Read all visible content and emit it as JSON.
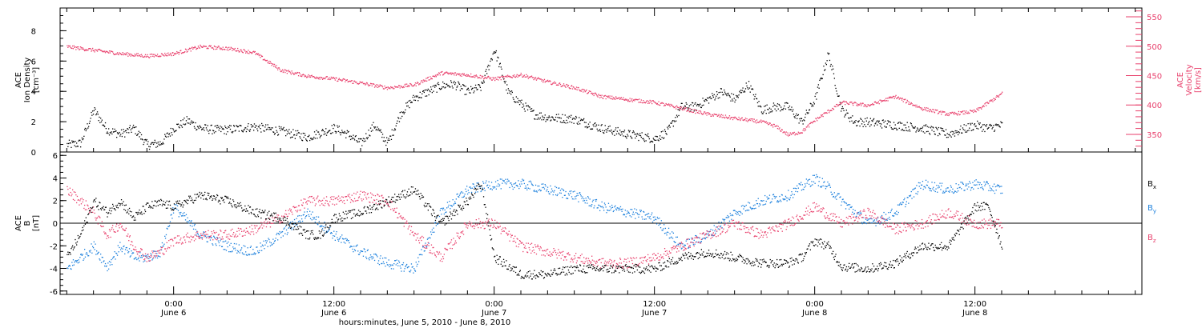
{
  "colors": {
    "black": "#000000",
    "pink": "#e8406c",
    "blue": "#1a7fdc"
  },
  "xaxis": {
    "ticks": [
      {
        "h": 24,
        "line1": "0:00",
        "line2": "June 6"
      },
      {
        "h": 36,
        "line1": "12:00",
        "line2": "June 6"
      },
      {
        "h": 48,
        "line1": "0:00",
        "line2": "June 7"
      },
      {
        "h": 60,
        "line1": "12:00",
        "line2": "June 7"
      },
      {
        "h": 72,
        "line1": "0:00",
        "line2": "June 8"
      },
      {
        "h": 84,
        "line1": "12:00",
        "line2": "June 8"
      }
    ],
    "title": "hours:minutes, June  5, 2010 - June  8, 2010",
    "range_hours": [
      15.5,
      96.5
    ]
  },
  "chart_data": [
    {
      "type": "scatter",
      "panel": "top",
      "ylabel_left": [
        "ACE",
        "Ion Density",
        "[cm⁻³]"
      ],
      "ylabel_right": [
        "ACE",
        "Velocity",
        "[km/s]"
      ],
      "yticks_left": [
        "0",
        "2",
        "4",
        "6",
        "8"
      ],
      "yticks_right": [
        "350",
        "400",
        "450",
        "500",
        "550"
      ],
      "ylim_left": [
        0,
        9.5
      ],
      "ylim_right": [
        320,
        565
      ],
      "series": [
        {
          "axis": "left",
          "color": "#000000",
          "x": [
            16,
            17,
            18,
            19,
            20,
            21,
            22,
            23,
            24,
            25,
            26,
            27,
            28,
            30,
            32,
            34,
            36,
            37,
            38,
            39,
            40,
            41,
            42,
            43,
            44,
            45,
            46,
            47,
            48,
            49,
            50,
            51,
            52,
            54,
            56,
            58,
            60,
            61,
            62,
            63,
            64,
            65,
            66,
            67,
            68,
            69,
            70,
            71,
            72,
            73,
            74,
            75,
            76,
            78,
            80,
            82,
            84,
            85,
            86
          ],
          "y": [
            0.5,
            0.6,
            2.8,
            1.5,
            1.2,
            1.6,
            0.5,
            0.6,
            1.6,
            2.1,
            1.6,
            1.5,
            1.5,
            1.7,
            1.4,
            1.0,
            1.6,
            1.2,
            0.6,
            1.8,
            0.6,
            2.6,
            3.6,
            4.0,
            4.4,
            4.5,
            4.0,
            4.3,
            6.8,
            4.0,
            3.2,
            2.5,
            2.3,
            2.2,
            1.6,
            1.2,
            0.9,
            1.4,
            3.0,
            3.0,
            3.5,
            4.0,
            3.5,
            4.5,
            2.8,
            3.0,
            3.0,
            2.0,
            3.5,
            6.5,
            2.8,
            2.0,
            2.0,
            1.8,
            1.6,
            1.2,
            1.8,
            1.6,
            1.8
          ]
        },
        {
          "axis": "right",
          "color": "#e8406c",
          "x": [
            16,
            18,
            20,
            22,
            24,
            26,
            28,
            30,
            32,
            34,
            36,
            38,
            40,
            42,
            44,
            46,
            48,
            50,
            52,
            54,
            56,
            58,
            60,
            62,
            64,
            66,
            68,
            69,
            70,
            71,
            72,
            74,
            76,
            78,
            80,
            82,
            84,
            86
          ],
          "y": [
            500,
            494,
            488,
            484,
            488,
            500,
            497,
            490,
            460,
            450,
            445,
            438,
            430,
            435,
            455,
            452,
            445,
            452,
            440,
            430,
            415,
            410,
            405,
            395,
            385,
            378,
            372,
            365,
            350,
            355,
            375,
            405,
            400,
            415,
            395,
            385,
            390,
            420
          ]
        }
      ]
    },
    {
      "type": "scatter",
      "panel": "bottom",
      "ylabel_left": [
        "ACE",
        "B",
        "[nT]"
      ],
      "yticks_left": [
        "-6",
        "-4",
        "-2",
        "0",
        "2",
        "4",
        "6"
      ],
      "ylim_left": [
        -6.3,
        6.3
      ],
      "series": [
        {
          "name": "Bx",
          "color": "#000000",
          "x": [
            16,
            17,
            18,
            19,
            20,
            21,
            22,
            23,
            24,
            26,
            28,
            30,
            32,
            34,
            35,
            36,
            38,
            40,
            42,
            44,
            46,
            47,
            48,
            50,
            52,
            54,
            56,
            58,
            60,
            62,
            64,
            66,
            68,
            70,
            71,
            72,
            73,
            74,
            76,
            78,
            80,
            82,
            84,
            85,
            86
          ],
          "y": [
            -3,
            -1,
            2,
            1,
            2,
            0.5,
            1.5,
            1.8,
            1.5,
            2.5,
            2.0,
            1.0,
            0.5,
            -1,
            -1,
            0.5,
            1,
            2,
            3,
            0,
            2,
            3.5,
            -3,
            -4.5,
            -4.5,
            -4,
            -4,
            -4,
            -4,
            -3,
            -2.5,
            -3,
            -3.5,
            -3.5,
            -3,
            -1.5,
            -2,
            -3.8,
            -4,
            -3.5,
            -2,
            -2,
            1.5,
            1.5,
            -2
          ]
        },
        {
          "name": "By",
          "color": "#1a7fdc",
          "x": [
            16,
            17,
            18,
            19,
            20,
            21,
            22,
            23,
            24,
            26,
            28,
            30,
            32,
            34,
            36,
            38,
            40,
            42,
            44,
            46,
            48,
            50,
            52,
            54,
            56,
            58,
            60,
            62,
            64,
            66,
            68,
            70,
            72,
            73,
            74,
            76,
            78,
            80,
            82,
            84,
            86
          ],
          "y": [
            -4,
            -3,
            -2,
            -3.8,
            -2,
            -3,
            -3,
            -2.5,
            1.5,
            -1,
            -2,
            -2.5,
            -1,
            1,
            -1,
            -2.5,
            -3.5,
            -4,
            1,
            3,
            3.5,
            3.5,
            3,
            2.5,
            1.5,
            1,
            0.5,
            -2,
            -1,
            1,
            2,
            2.5,
            4,
            3.2,
            2,
            0,
            1,
            3.5,
            3,
            3.5,
            3
          ]
        },
        {
          "name": "Bz",
          "color": "#e8406c",
          "x": [
            16,
            17,
            18,
            19,
            20,
            21,
            22,
            23,
            24,
            26,
            28,
            30,
            32,
            34,
            36,
            38,
            40,
            42,
            44,
            46,
            48,
            50,
            52,
            54,
            56,
            58,
            60,
            62,
            64,
            66,
            68,
            70,
            72,
            74,
            76,
            78,
            80,
            82,
            84,
            86
          ],
          "y": [
            3,
            2,
            1,
            -1,
            0,
            -2,
            -3,
            -2.5,
            -1.5,
            -1,
            -1,
            -0.5,
            0.5,
            2,
            2,
            2.5,
            2,
            -1,
            -3,
            0,
            0,
            -2,
            -2.5,
            -3,
            -3.5,
            -3.5,
            -3,
            -2,
            -1,
            0,
            -1,
            0,
            1.5,
            0,
            1,
            -0.5,
            0,
            1,
            0,
            0
          ]
        }
      ]
    }
  ],
  "legend": [
    {
      "label": "B",
      "sub": "x",
      "color": "#000000"
    },
    {
      "label": "B",
      "sub": "y",
      "color": "#1a7fdc"
    },
    {
      "label": "B",
      "sub": "z",
      "color": "#e8406c"
    }
  ]
}
